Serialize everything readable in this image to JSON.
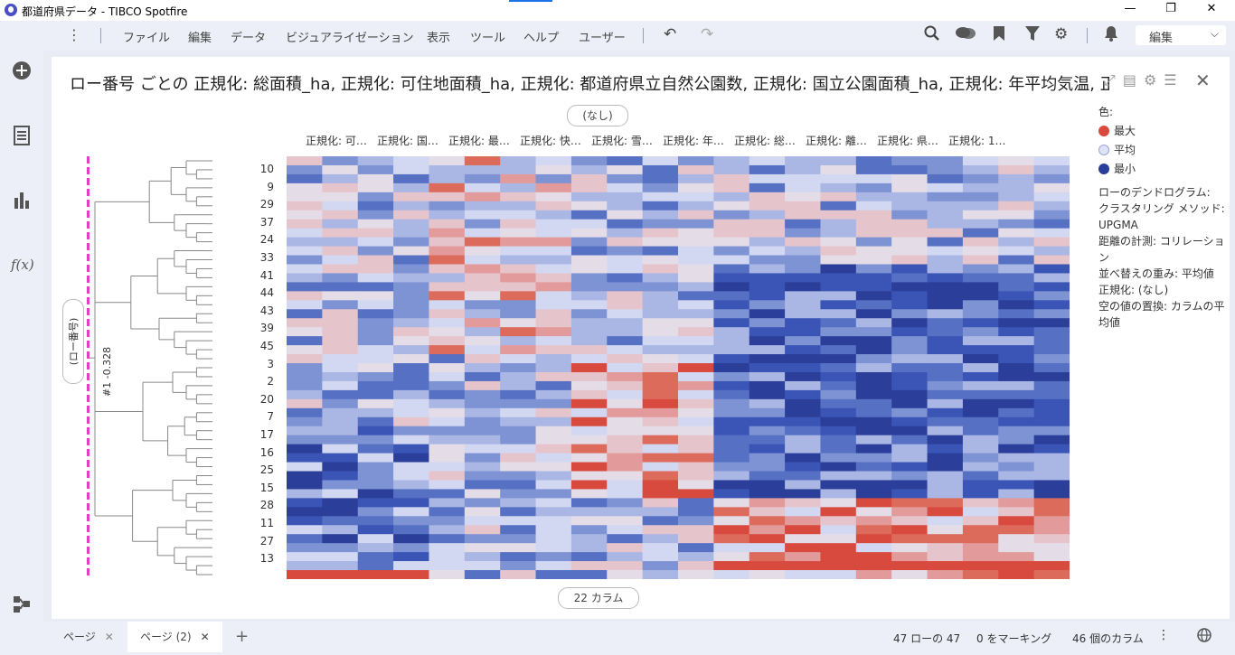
{
  "window": {
    "title": "都道府県データ - TIBCO Spotfire",
    "minimize": "—",
    "restore": "❐",
    "close": "✕"
  },
  "menu": {
    "items": [
      "ファイル",
      "編集",
      "データ",
      "ビジュアライゼーション",
      "表示",
      "ツール",
      "ヘルプ",
      "ユーザー"
    ],
    "mode_select": "編集"
  },
  "visualization": {
    "title": "ロー番号 ごとの 正規化: 総面積_ha, 正規化: 可住地面積_ha, 正規化: 都道府県立自然公園数, 正規化: 国立公園面積_ha, 正規化: 年平均気温, 正規化",
    "top_axis_pill": "(なし)",
    "bottom_axis_pill": "22 カラム",
    "row_axis_pill": "(ロー番号)",
    "cut_label": "#1 -0.328",
    "column_headers": [
      "正規化: 可…",
      "正規化: 国…",
      "正規化: 最…",
      "正規化: 快…",
      "正規化: 雪…",
      "正規化: 年…",
      "正規化: 総…",
      "正規化: 離…",
      "正規化: 県…",
      "正規化: 1…"
    ],
    "row_labels": [
      "10",
      "9",
      "29",
      "37",
      "24",
      "33",
      "41",
      "44",
      "43",
      "39",
      "45",
      "3",
      "2",
      "20",
      "7",
      "17",
      "16",
      "25",
      "15",
      "28",
      "11",
      "27",
      "13"
    ]
  },
  "legend": {
    "title": "色:",
    "items": [
      {
        "label": "最大",
        "color": "#d94a3e"
      },
      {
        "label": "平均",
        "color": "#dfe3f7"
      },
      {
        "label": "最小",
        "color": "#2b3f9a"
      }
    ],
    "info": [
      "ローのデンドログラム:",
      "クラスタリング メソッド: UPGMA",
      "距離の計測: コリレーション",
      "並べ替えの重み: 平均値",
      "正規化: (なし)",
      "空の値の置換: カラムの平均値"
    ]
  },
  "tabs": [
    {
      "label": "ページ",
      "active": false
    },
    {
      "label": "ページ (2)",
      "active": true
    }
  ],
  "status": {
    "rows": "47 ローの 47",
    "marked": "0 をマーキング",
    "columns": "46 個のカラム"
  },
  "colors": {
    "accent": "#1a73e8",
    "cut_line": "#e040c8",
    "high": "#d94a3e",
    "mid": "#dfe3f7",
    "low": "#2b3f9a"
  }
}
